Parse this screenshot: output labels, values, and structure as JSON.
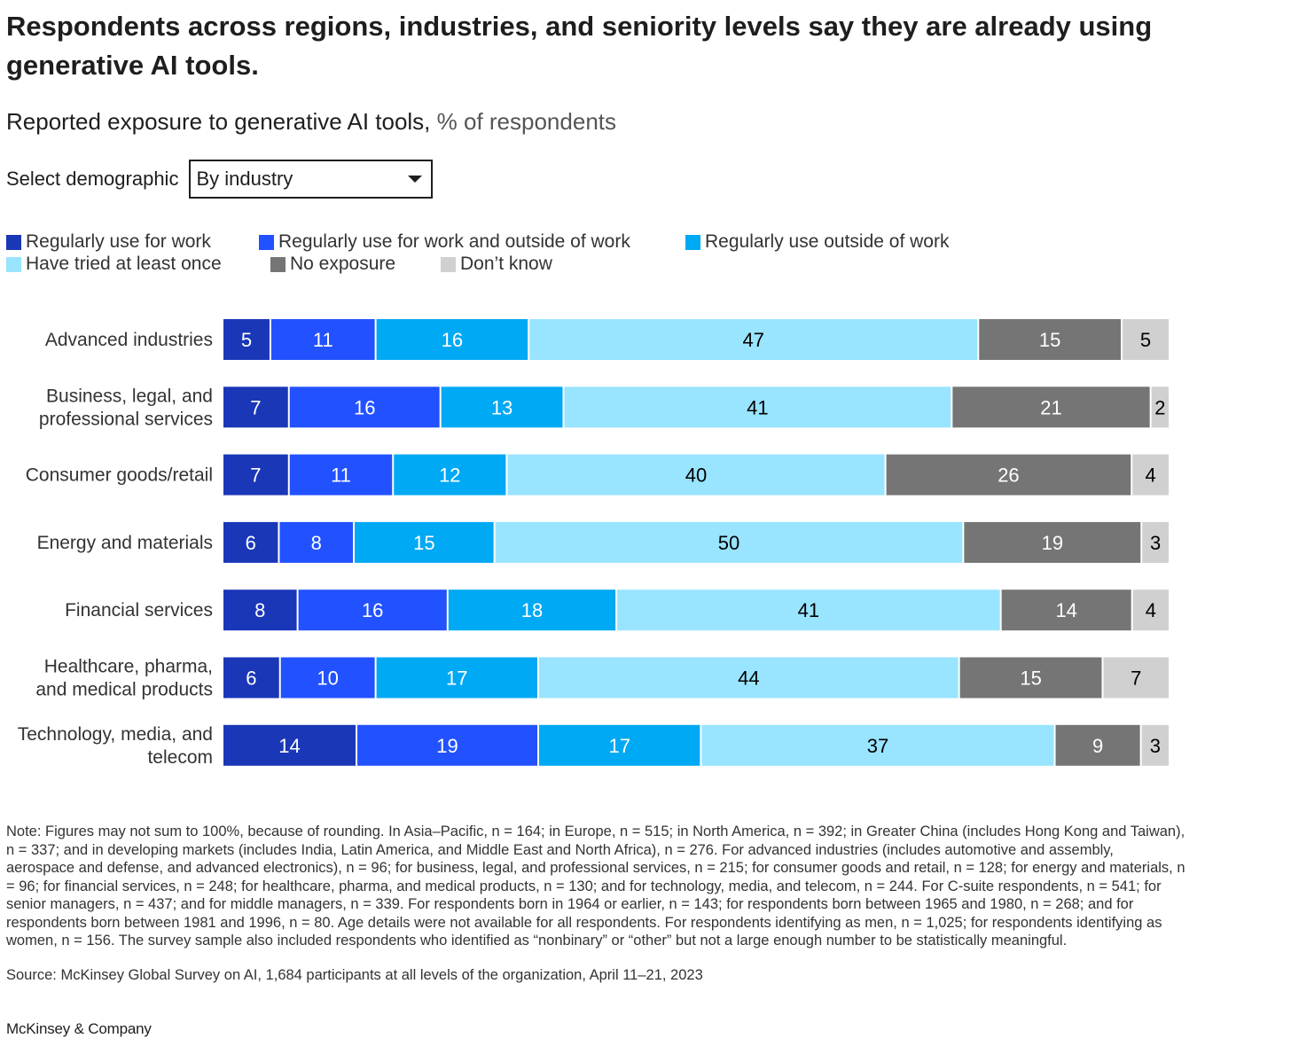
{
  "header": {
    "title": "Respondents across regions, industries, and seniority levels say they are already using generative AI tools.",
    "subtitle_main": "Reported exposure to generative AI tools,",
    "subtitle_unit": " % of respondents"
  },
  "selector": {
    "label": "Select demographic",
    "value": "By industry"
  },
  "chart_data": {
    "type": "bar",
    "orientation": "horizontal",
    "stacked": true,
    "categories": [
      [
        "Advanced industries"
      ],
      [
        "Business, legal, and",
        "professional services"
      ],
      [
        "Consumer goods/retail"
      ],
      [
        "Energy and materials"
      ],
      [
        "Financial services"
      ],
      [
        "Healthcare, pharma,",
        "and medical products"
      ],
      [
        "Technology, media, and",
        "telecom"
      ]
    ],
    "series": [
      {
        "name": "Regularly use for work",
        "color": "#1a37b8",
        "label_color": "#ffffff",
        "values": [
          5,
          7,
          7,
          6,
          8,
          6,
          14
        ]
      },
      {
        "name": "Regularly use for work and outside of work",
        "color": "#2251ff",
        "label_color": "#ffffff",
        "values": [
          11,
          16,
          11,
          8,
          16,
          10,
          19
        ]
      },
      {
        "name": "Regularly use outside of work",
        "color": "#00a9f4",
        "label_color": "#ffffff",
        "values": [
          16,
          13,
          12,
          15,
          18,
          17,
          17
        ]
      },
      {
        "name": "Have tried at least once",
        "color": "#99e4ff",
        "label_color": "#000000",
        "values": [
          47,
          41,
          40,
          50,
          41,
          44,
          37
        ]
      },
      {
        "name": "No exposure",
        "color": "#757575",
        "label_color": "#ffffff",
        "values": [
          15,
          21,
          26,
          19,
          14,
          15,
          9
        ]
      },
      {
        "name": "Don’t know",
        "color": "#d0d0d0",
        "label_color": "#000000",
        "values": [
          5,
          2,
          4,
          3,
          4,
          7,
          3
        ]
      }
    ],
    "legend_position": "top"
  },
  "footer": {
    "note": "Note: Figures may not sum to 100%, because of rounding. In Asia–Pacific, n = 164; in Europe, n = 515; in North America, n = 392; in Greater China (includes Hong Kong and Taiwan), n = 337; and in developing markets (includes India, Latin America, and Middle East and North Africa), n = 276. For advanced industries (includes automotive and assembly, aerospace and defense, and advanced electronics), n = 96; for business, legal, and professional services, n = 215; for consumer goods and retail, n = 128; for energy and materials, n = 96; for financial services, n = 248; for healthcare, pharma, and medical products, n = 130; and for technology, media, and telecom, n = 244. For C-suite respondents, n = 541; for senior managers, n = 437; and for middle managers, n = 339. For respondents born in 1964 or earlier, n = 143; for respondents born between 1965 and 1980, n = 268; and for respondents born between 1981 and 1996, n = 80. Age details were not available for all respondents. For respondents identifying as men, n = 1,025; for respondents identifying as women, n = 156. The survey sample also included respondents who identified as “nonbinary” or “other” but not a large enough number to be statistically meaningful.",
    "source": "Source: McKinsey Global Survey on AI, 1,684 participants at all levels of the organization, April 11–21, 2023",
    "brand": "McKinsey & Company"
  }
}
